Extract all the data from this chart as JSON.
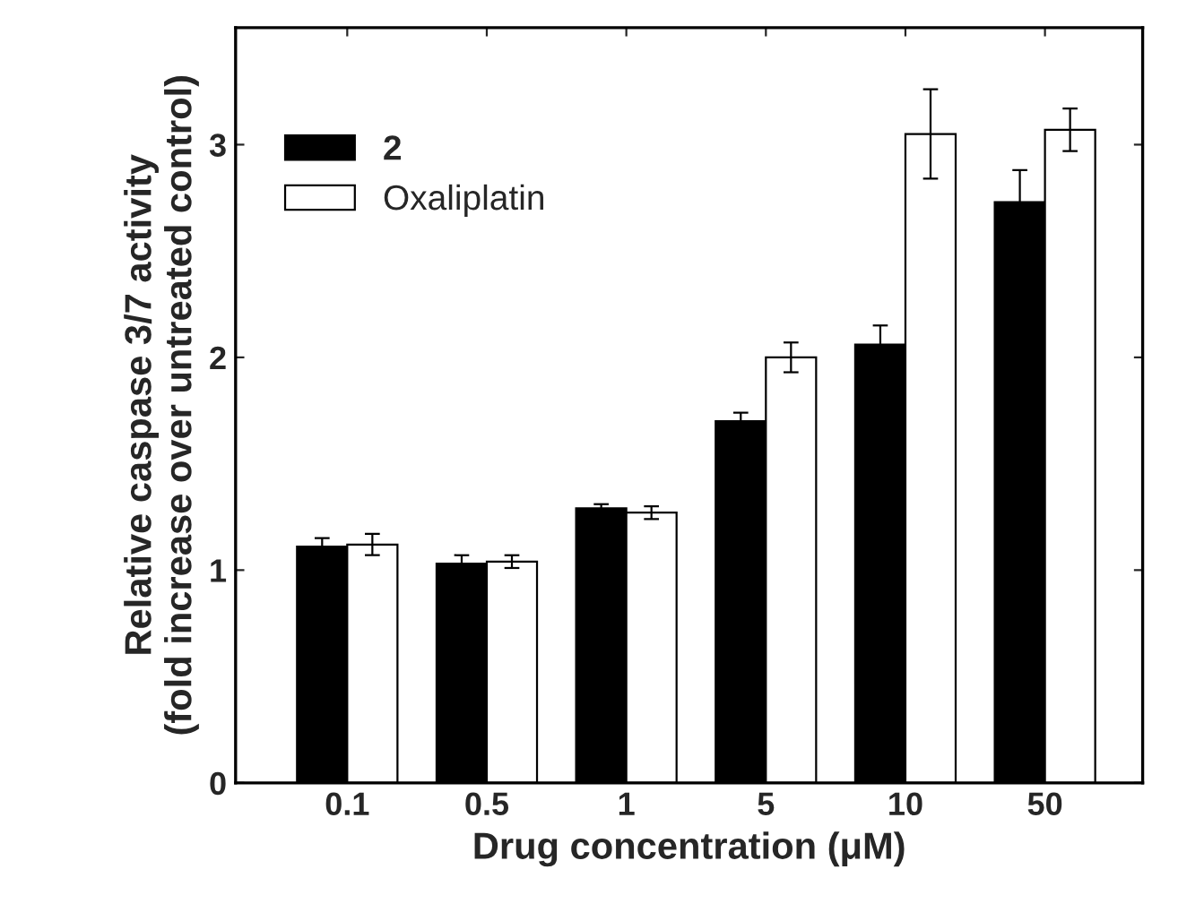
{
  "chart_data": {
    "type": "bar",
    "xlabel": "Drug concentration (μM)",
    "ylabel": "Relative caspase 3/7 activity\n(fold increase over untreated control)",
    "categories": [
      "0.1",
      "0.5",
      "1",
      "5",
      "10",
      "50"
    ],
    "series": [
      {
        "name": "2",
        "color": "#000000",
        "values": [
          1.11,
          1.03,
          1.29,
          1.7,
          2.06,
          2.73
        ],
        "errors": [
          0.04,
          0.04,
          0.02,
          0.04,
          0.09,
          0.15
        ]
      },
      {
        "name": "Oxaliplatin",
        "color": "#ffffff",
        "values": [
          1.12,
          1.04,
          1.27,
          2.0,
          3.05,
          3.07
        ],
        "errors": [
          0.05,
          0.03,
          0.03,
          0.07,
          0.21,
          0.1
        ]
      }
    ],
    "ylim": [
      0,
      3.55
    ],
    "yticks": [
      0,
      1,
      2,
      3
    ],
    "grid": false,
    "legend": "top left"
  }
}
